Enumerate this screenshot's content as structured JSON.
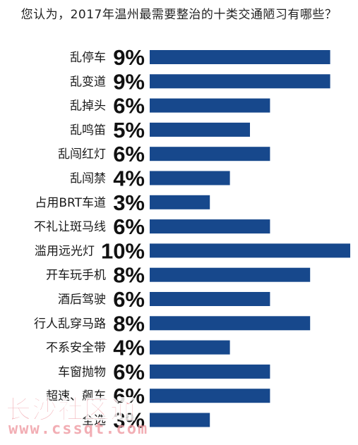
{
  "chart_data": {
    "type": "bar",
    "orientation": "horizontal",
    "title": "您认为，2017年温州最需要整治的十类交通陋习有哪些？",
    "categories": [
      "乱停车",
      "乱变道",
      "乱掉头",
      "乱鸣笛",
      "乱闯红灯",
      "乱闯禁",
      "占用BRT车道",
      "不礼让斑马线",
      "滥用远光灯",
      "开车玩手机",
      "酒后驾驶",
      "行人乱穿马路",
      "不系安全带",
      "车窗抛物",
      "超速、飙车",
      "全选"
    ],
    "values": [
      9,
      9,
      6,
      5,
      6,
      4,
      3,
      6,
      10,
      8,
      6,
      8,
      4,
      6,
      6,
      3
    ],
    "value_labels": [
      "9%",
      "9%",
      "6%",
      "5%",
      "6%",
      "4%",
      "3%",
      "6%",
      "10%",
      "8%",
      "6%",
      "8%",
      "4%",
      "6%",
      "6%",
      "3%"
    ],
    "unit": "%",
    "xlim": [
      0,
      10
    ],
    "grid": false,
    "legend": "none",
    "bar_color": "#17488c"
  },
  "watermark": {
    "line1": "长沙社区通",
    "line2": "www.cssqt.com",
    "color": "#f0a0a8"
  }
}
